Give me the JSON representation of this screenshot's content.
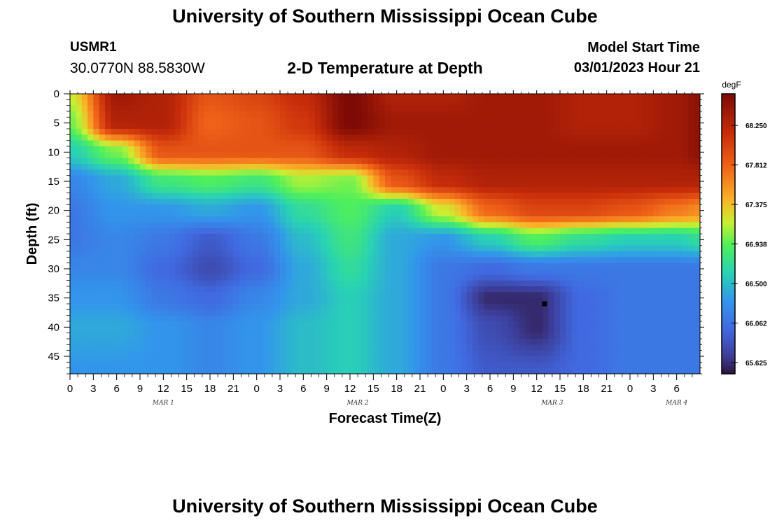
{
  "header": {
    "title": "University of Southern Mississippi Ocean Cube",
    "station_id": "USMR1",
    "coordinates": "30.0770N  88.5830W",
    "subtitle": "2-D Temperature at Depth",
    "model_start_label": "Model Start Time",
    "model_start_value": "03/01/2023 Hour 21"
  },
  "footer": {
    "title": "University of Southern Mississippi Ocean Cube"
  },
  "chart_data": {
    "type": "heatmap",
    "title": "2-D Temperature at Depth",
    "xlabel": "Forecast Time(Z)",
    "ylabel": "Depth (ft)",
    "x_range_hours": [
      0,
      81
    ],
    "x_tick_step_hours": 3,
    "x_tick_labels": [
      "0",
      "3",
      "6",
      "9",
      "12",
      "15",
      "18",
      "21",
      "0",
      "3",
      "6",
      "9",
      "12",
      "15",
      "18",
      "21",
      "0",
      "3",
      "6",
      "9",
      "12",
      "15",
      "18",
      "21",
      "0",
      "3",
      "6"
    ],
    "day_labels": [
      {
        "label": "MAR 1",
        "hour": 12
      },
      {
        "label": "MAR 2",
        "hour": 37
      },
      {
        "label": "MAR 3",
        "hour": 62
      },
      {
        "label": "MAR 4",
        "hour": 78
      }
    ],
    "y_range_ft": [
      0,
      48
    ],
    "y_ticks": [
      0,
      5,
      10,
      15,
      20,
      25,
      30,
      35,
      40,
      45
    ],
    "colorbar": {
      "unit": "degF",
      "min": 65.5,
      "max": 68.6,
      "tick_labels": [
        "68.250",
        "67.812",
        "67.375",
        "66.938",
        "66.500",
        "66.062",
        "65.625"
      ]
    },
    "grid_hours": [
      0,
      6,
      12,
      18,
      24,
      30,
      36,
      42,
      48,
      54,
      60,
      66,
      72,
      78,
      81
    ],
    "grid_depths_ft": [
      0,
      5,
      10,
      15,
      20,
      25,
      30,
      35,
      40,
      48
    ],
    "temperature_degF": [
      [
        67.2,
        68.4,
        68.3,
        67.9,
        68.0,
        68.2,
        68.6,
        68.3,
        68.3,
        68.4,
        68.4,
        68.3,
        68.3,
        68.4,
        68.5
      ],
      [
        67.0,
        68.3,
        68.3,
        67.8,
        67.9,
        68.1,
        68.6,
        68.4,
        68.4,
        68.4,
        68.4,
        68.3,
        68.3,
        68.4,
        68.5
      ],
      [
        66.6,
        67.0,
        67.9,
        67.9,
        67.9,
        67.9,
        68.2,
        68.3,
        68.4,
        68.4,
        68.4,
        68.4,
        68.4,
        68.4,
        68.5
      ],
      [
        66.2,
        66.4,
        66.8,
        66.9,
        66.8,
        67.1,
        67.0,
        67.9,
        68.2,
        68.3,
        68.3,
        68.3,
        68.3,
        68.3,
        68.3
      ],
      [
        66.1,
        66.3,
        66.3,
        66.4,
        66.3,
        66.7,
        66.9,
        66.6,
        67.2,
        67.8,
        68.0,
        68.0,
        67.9,
        67.7,
        67.6
      ],
      [
        66.1,
        66.2,
        66.1,
        65.9,
        66.1,
        66.5,
        66.8,
        66.4,
        66.3,
        66.6,
        66.9,
        66.7,
        66.6,
        66.6,
        66.7
      ],
      [
        66.2,
        66.2,
        66.0,
        65.8,
        66.0,
        66.4,
        66.7,
        66.4,
        66.1,
        66.0,
        66.1,
        66.1,
        66.1,
        66.1,
        66.1
      ],
      [
        66.3,
        66.3,
        66.1,
        66.0,
        66.2,
        66.4,
        66.6,
        66.4,
        66.1,
        65.6,
        65.6,
        66.0,
        66.1,
        66.1,
        66.1
      ],
      [
        66.4,
        66.4,
        66.3,
        66.2,
        66.3,
        66.5,
        66.6,
        66.4,
        66.1,
        65.8,
        65.6,
        66.0,
        66.1,
        66.1,
        66.1
      ],
      [
        66.3,
        66.3,
        66.3,
        66.2,
        66.3,
        66.5,
        66.6,
        66.4,
        66.1,
        65.9,
        65.9,
        66.0,
        66.1,
        66.1,
        66.1
      ]
    ],
    "marker": {
      "hour": 61,
      "depth_ft": 36
    }
  }
}
